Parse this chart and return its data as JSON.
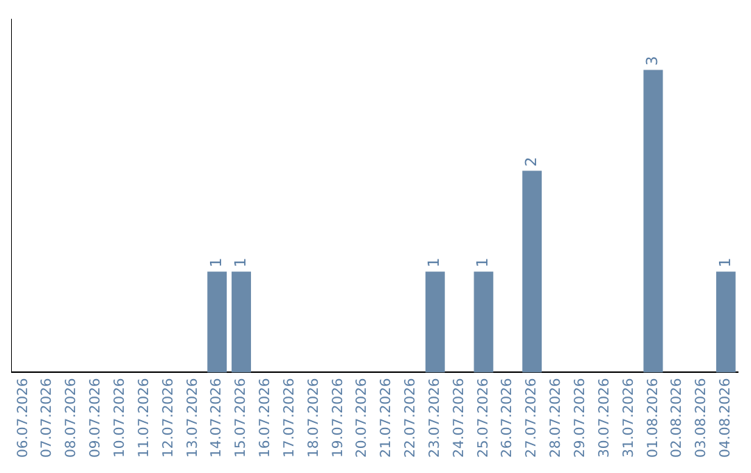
{
  "chart_data": {
    "type": "bar",
    "categories": [
      "06.07.2026",
      "07.07.2026",
      "08.07.2026",
      "09.07.2026",
      "10.07.2026",
      "11.07.2026",
      "12.07.2026",
      "13.07.2026",
      "14.07.2026",
      "15.07.2026",
      "16.07.2026",
      "17.07.2026",
      "18.07.2026",
      "19.07.2026",
      "20.07.2026",
      "21.07.2026",
      "22.07.2026",
      "23.07.2026",
      "24.07.2026",
      "25.07.2026",
      "26.07.2026",
      "27.07.2026",
      "28.07.2026",
      "29.07.2026",
      "30.07.2026",
      "31.07.2026",
      "01.08.2026",
      "02.08.2026",
      "03.08.2026",
      "04.08.2026"
    ],
    "values": [
      0,
      0,
      0,
      0,
      0,
      0,
      0,
      0,
      1,
      1,
      0,
      0,
      0,
      0,
      0,
      0,
      0,
      1,
      0,
      1,
      0,
      2,
      0,
      0,
      0,
      0,
      3,
      0,
      0,
      1
    ],
    "value_labels": [
      null,
      null,
      null,
      null,
      null,
      null,
      null,
      null,
      "1",
      "1",
      null,
      null,
      null,
      null,
      null,
      null,
      null,
      "1",
      null,
      "1",
      null,
      "2",
      null,
      null,
      null,
      null,
      "3",
      null,
      null,
      "1"
    ],
    "color": "#6a8aaa",
    "tick_labels": "x",
    "grid": false,
    "legend": false
  }
}
